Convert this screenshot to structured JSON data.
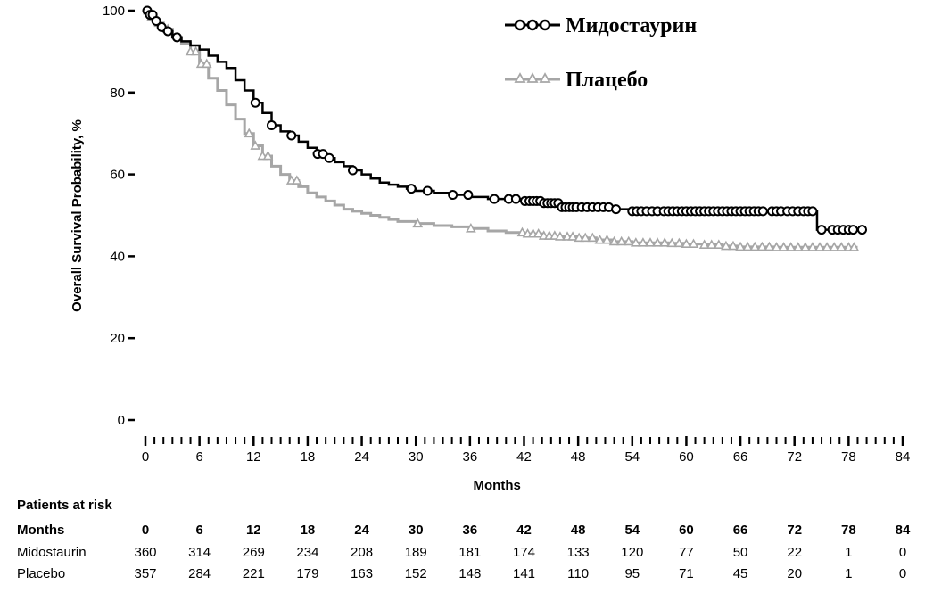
{
  "chart_data": {
    "type": "line",
    "title": "",
    "xlabel": "Months",
    "ylabel": "Overall Survival Probability, %",
    "xlim": [
      0,
      84
    ],
    "ylim": [
      0,
      100
    ],
    "x_ticks": [
      "0",
      "6",
      "12",
      "18",
      "24",
      "30",
      "36",
      "42",
      "48",
      "54",
      "60",
      "66",
      "72",
      "78",
      "84"
    ],
    "y_ticks": [
      "0",
      "20",
      "40",
      "60",
      "80",
      "100"
    ],
    "minor_tick_step_months": 1,
    "grid": false,
    "legend_position": "top-right",
    "series": [
      {
        "name": "Мидостаурин",
        "color": "#000000",
        "marker": "circle",
        "x": [
          0,
          0.5,
          1,
          1.5,
          2,
          3,
          4,
          5,
          6,
          7,
          8,
          9,
          10,
          11,
          12,
          13,
          14,
          15,
          16,
          17,
          18,
          19,
          20,
          21,
          22,
          23,
          24,
          25,
          26,
          27,
          28,
          29,
          30,
          32,
          34,
          36,
          38,
          40,
          42,
          44,
          46,
          48,
          50,
          52,
          54,
          56,
          58,
          60,
          62,
          64,
          66,
          68,
          70,
          72,
          74.5,
          74.5,
          76,
          78,
          79.5
        ],
        "y": [
          100,
          99,
          97.5,
          96,
          95,
          93.5,
          92.5,
          91.5,
          90.5,
          89,
          87.5,
          86,
          83,
          80.5,
          77.5,
          75,
          72,
          70.5,
          69.5,
          68,
          66.5,
          65,
          64,
          63,
          62,
          61,
          60,
          59,
          58,
          57.5,
          57,
          56.5,
          56,
          55.5,
          55,
          54.5,
          54,
          54,
          53.5,
          53,
          52,
          52,
          52,
          51.5,
          51,
          51,
          51,
          51,
          51,
          51,
          51,
          51,
          51,
          51,
          51,
          46.5,
          46.5,
          46.5,
          46.5
        ],
        "censor_x": [
          0.2,
          0.5,
          0.8,
          1.2,
          1.8,
          2.5,
          3.5,
          12.2,
          14,
          16.2,
          19.1,
          19.7,
          20.4,
          23,
          29.5,
          31.3,
          34.1,
          35.8,
          38.7,
          40.3,
          41.1,
          42.1,
          42.6,
          43,
          43.4,
          43.8,
          44.2,
          44.6,
          45,
          45.4,
          45.8,
          46.2,
          46.6,
          47,
          47.4,
          47.8,
          48.4,
          49,
          49.6,
          50.2,
          50.8,
          51.4,
          52.2,
          54,
          54.5,
          55,
          55.6,
          56.2,
          56.8,
          57.5,
          58,
          58.5,
          59,
          59.5,
          60,
          60.5,
          61,
          61.5,
          62,
          62.5,
          63,
          63.5,
          64,
          64.5,
          65,
          65.5,
          66,
          66.5,
          67,
          67.5,
          68,
          68.5,
          69.5,
          70,
          70.5,
          71.2,
          71.8,
          72.4,
          73,
          73.5,
          74,
          75,
          76.2,
          76.8,
          77.4,
          78,
          78.5,
          79.5
        ],
        "risk_counts": [
          "360",
          "314",
          "269",
          "234",
          "208",
          "189",
          "181",
          "174",
          "133",
          "120",
          "77",
          "50",
          "22",
          "1",
          "0"
        ]
      },
      {
        "name": "Плацебо",
        "color": "#a6a6a6",
        "marker": "triangle",
        "x": [
          0,
          0.5,
          1,
          2,
          3,
          4,
          5,
          6,
          7,
          8,
          9,
          10,
          11,
          12,
          13,
          14,
          15,
          16,
          17,
          18,
          19,
          20,
          21,
          22,
          23,
          24,
          25,
          26,
          27,
          28,
          30,
          32,
          34,
          36,
          38,
          40,
          42,
          44,
          46,
          48,
          50,
          52,
          54,
          56,
          58,
          60,
          62,
          64,
          66,
          68,
          70,
          72,
          74,
          76,
          78,
          79
        ],
        "y": [
          100,
          98.5,
          97,
          95.5,
          93.5,
          92,
          90,
          87,
          83.5,
          80.5,
          77,
          73.5,
          70,
          67,
          64.5,
          62,
          60,
          58.5,
          57,
          55.5,
          54.5,
          53.5,
          52.5,
          51.5,
          51,
          50.5,
          50,
          49.5,
          49,
          48.5,
          48,
          47.5,
          47.2,
          46.8,
          46.2,
          45.8,
          45.5,
          45,
          44.8,
          44.5,
          44,
          43.6,
          43.3,
          43.3,
          43.2,
          43,
          42.8,
          42.5,
          42.3,
          42.3,
          42.2,
          42.2,
          42.2,
          42.2,
          42.2,
          42.2
        ],
        "censor_x": [
          0.3,
          0.7,
          1.5,
          2.5,
          5,
          5.6,
          6.2,
          6.8,
          11.5,
          12.2,
          13,
          13.6,
          16.2,
          16.8,
          30.2,
          36.1,
          41.8,
          42.4,
          43,
          43.6,
          44.2,
          44.8,
          45.4,
          46,
          46.8,
          47.4,
          48.1,
          48.8,
          49.6,
          50.4,
          51.2,
          52,
          52.8,
          53.6,
          54.4,
          55.2,
          56,
          56.8,
          57.6,
          58.4,
          59.2,
          60,
          60.8,
          62,
          62.8,
          63.6,
          64.4,
          65.2,
          66,
          66.8,
          67.6,
          68.4,
          69.2,
          70,
          70.8,
          71.6,
          72.4,
          73.2,
          74,
          74.8,
          75.6,
          76.4,
          77.2,
          78,
          78.6
        ],
        "risk_counts": [
          "357",
          "284",
          "221",
          "179",
          "163",
          "152",
          "148",
          "141",
          "110",
          "95",
          "71",
          "45",
          "20",
          "1",
          "0"
        ]
      }
    ],
    "risk_table": {
      "heading": "Patients at risk",
      "header_label": "Months",
      "months": [
        "0",
        "6",
        "12",
        "18",
        "24",
        "30",
        "36",
        "42",
        "48",
        "54",
        "60",
        "66",
        "72",
        "78",
        "84"
      ],
      "rows": [
        {
          "label": "Midostaurin",
          "values": [
            "360",
            "314",
            "269",
            "234",
            "208",
            "189",
            "181",
            "174",
            "133",
            "120",
            "77",
            "50",
            "22",
            "1",
            "0"
          ]
        },
        {
          "label": "Placebo",
          "values": [
            "357",
            "284",
            "221",
            "179",
            "163",
            "152",
            "148",
            "141",
            "110",
            "95",
            "71",
            "45",
            "20",
            "1",
            "0"
          ]
        }
      ]
    }
  }
}
